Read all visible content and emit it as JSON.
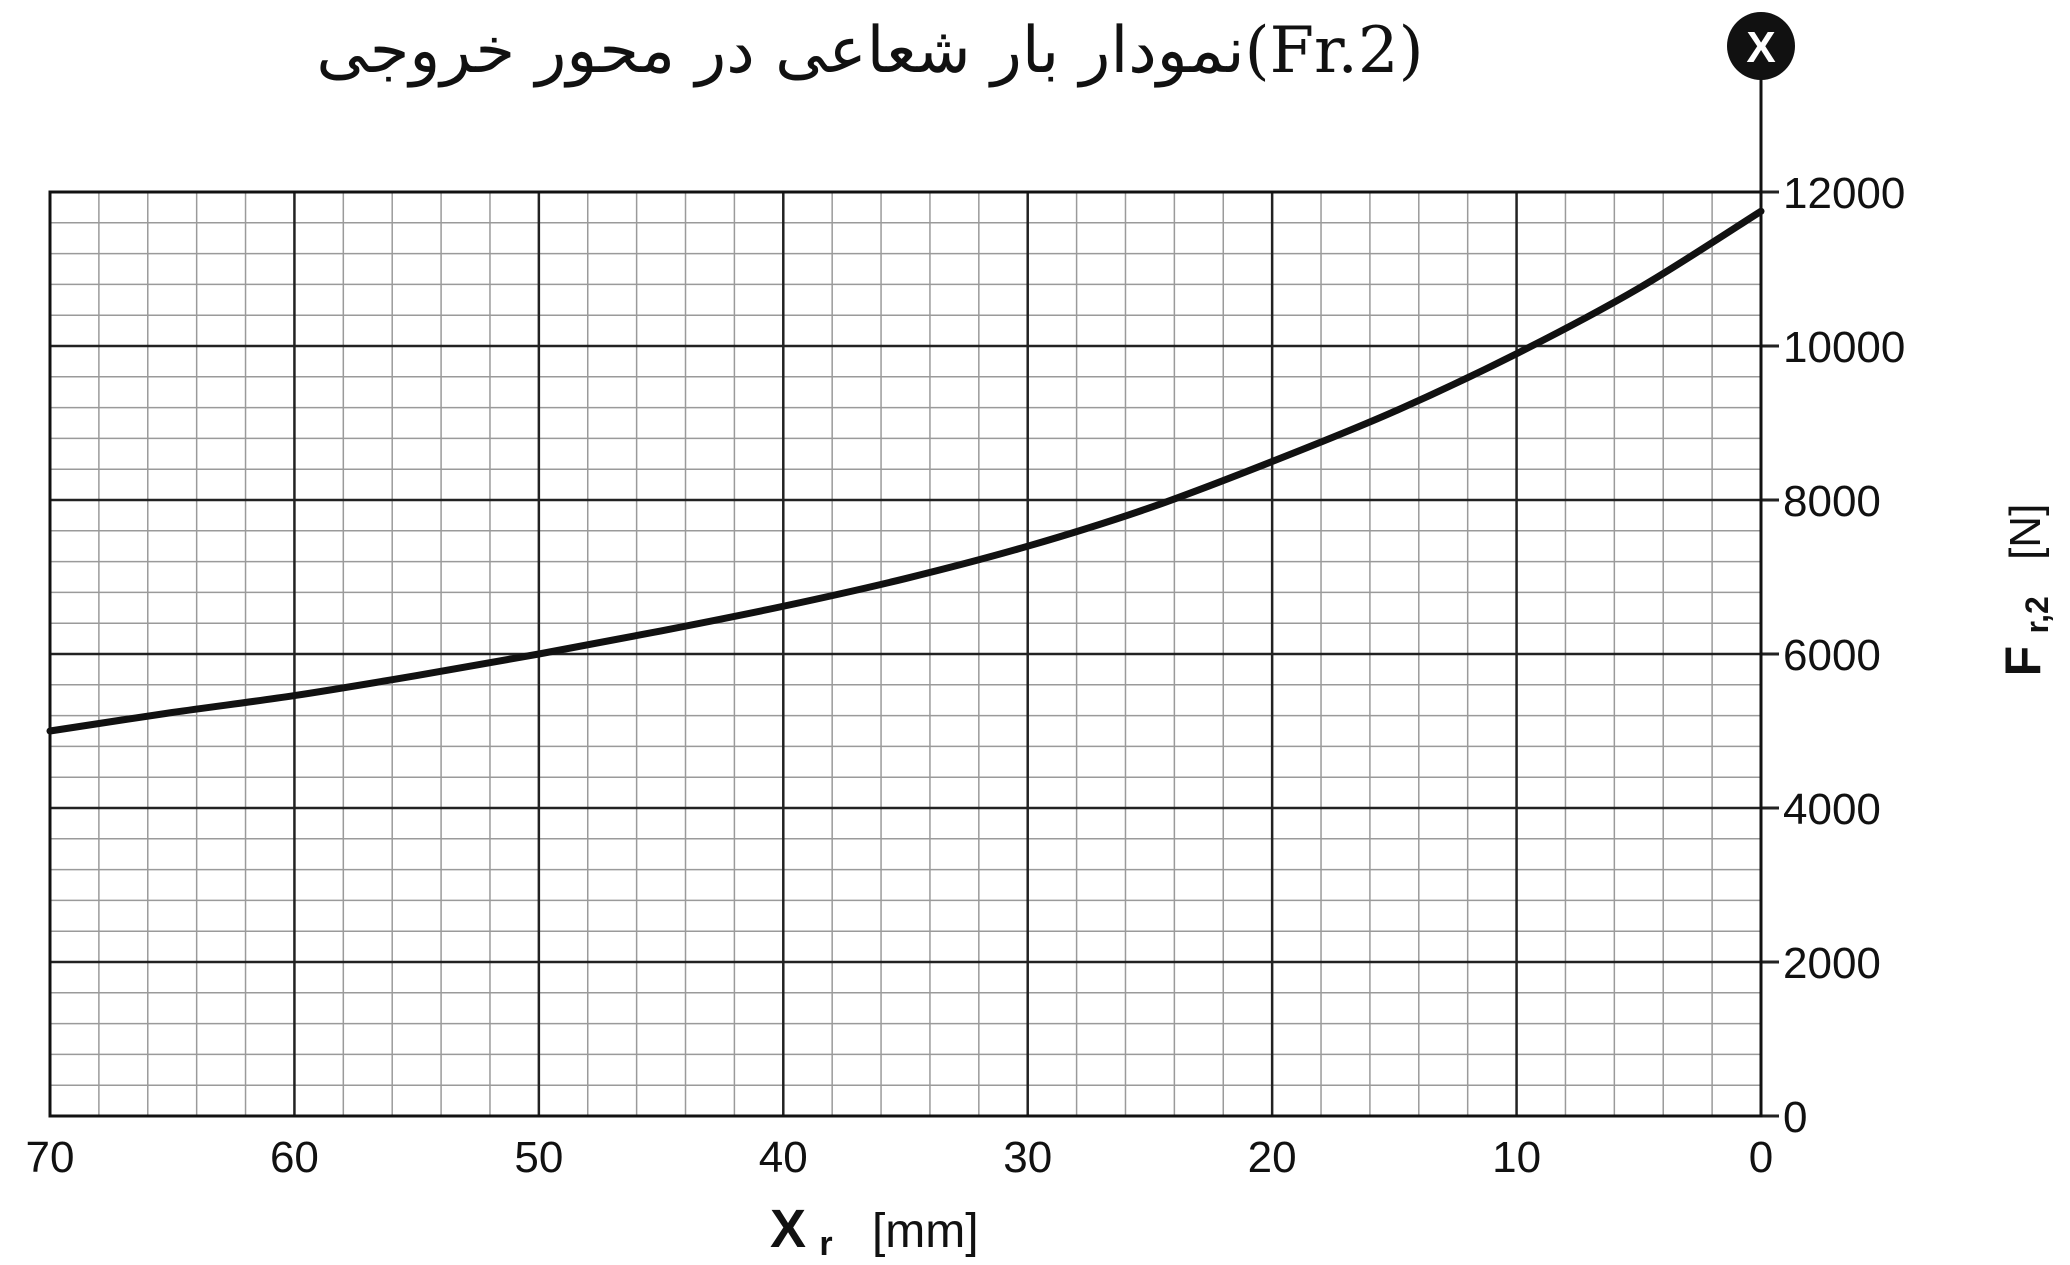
{
  "chart_data": {
    "type": "line",
    "title": "نمودار بار شعاعی  در محور خروجی(Fr.2)",
    "marker_label": "X",
    "xlabel_main": "X",
    "xlabel_sub": "r",
    "xlabel_unit": "[mm]",
    "ylabel_main": "F",
    "ylabel_sub": "r,2",
    "ylabel_unit": "[N]",
    "xlim": [
      70,
      0
    ],
    "ylim": [
      0,
      12000
    ],
    "x_ticks": [
      "70",
      "60",
      "50",
      "40",
      "30",
      "20",
      "10",
      "0"
    ],
    "y_ticks": [
      "0",
      "2000",
      "4000",
      "6000",
      "8000",
      "10000",
      "12000"
    ],
    "grid": true,
    "x_minor_step": 2,
    "y_minor_step": 400,
    "series": [
      {
        "x": [
          70,
          65,
          60,
          55,
          50,
          45,
          40,
          35,
          30,
          25,
          20,
          15,
          10,
          5,
          0
        ],
        "y": [
          5000,
          5240,
          5460,
          5720,
          6000,
          6300,
          6620,
          6980,
          7400,
          7900,
          8500,
          9150,
          9900,
          10750,
          11750
        ]
      }
    ],
    "colors": {
      "curve": "#111111",
      "major_grid": "#222222",
      "minor_grid": "#9a9a9a",
      "marker_fill": "#111111",
      "marker_text": "#ffffff"
    }
  }
}
